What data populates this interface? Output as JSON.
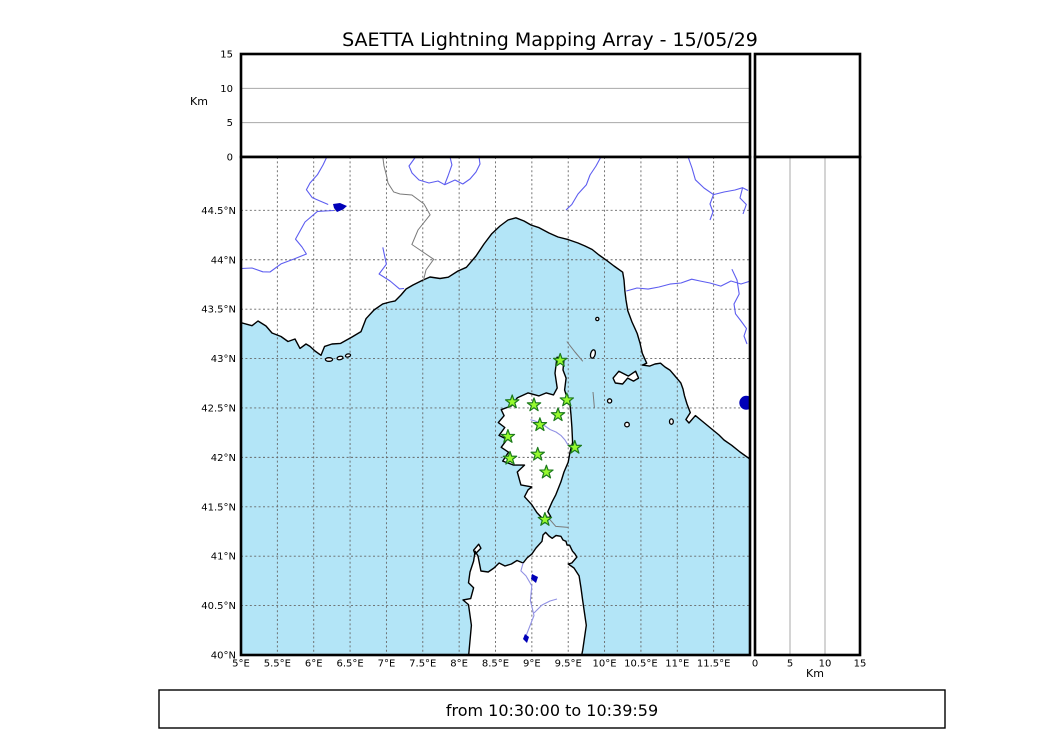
{
  "title": "SAETTA Lightning Mapping Array - 15/05/29",
  "footer": {
    "time_range": "from 10:30:00 to 10:39:59"
  },
  "chart_data": {
    "type": "scatter",
    "title": "SAETTA Lightning Mapping Array - 15/05/29",
    "subtitle_time_window": {
      "from": "10:30:00",
      "to": "10:39:59"
    },
    "map_extent": {
      "lon_min": 5,
      "lon_max": 12,
      "lat_min": 40,
      "lat_max": 45.04
    },
    "altitude_axis": {
      "label": "Km",
      "min": 0,
      "max": 15,
      "ticks": [
        0,
        5,
        10,
        15
      ],
      "gridlines": [
        5,
        10
      ]
    },
    "lon_ticks": [
      {
        "v": 5,
        "label": "5°E"
      },
      {
        "v": 5.5,
        "label": "5.5°E"
      },
      {
        "v": 6,
        "label": "6°E"
      },
      {
        "v": 6.5,
        "label": "6.5°E"
      },
      {
        "v": 7,
        "label": "7°E"
      },
      {
        "v": 7.5,
        "label": "7.5°E"
      },
      {
        "v": 8,
        "label": "8°E"
      },
      {
        "v": 8.5,
        "label": "8.5°E"
      },
      {
        "v": 9,
        "label": "9°E"
      },
      {
        "v": 9.5,
        "label": "9.5°E"
      },
      {
        "v": 10,
        "label": "10°E"
      },
      {
        "v": 10.5,
        "label": "10.5°E"
      },
      {
        "v": 11,
        "label": "11°E"
      },
      {
        "v": 11.5,
        "label": "11.5°E"
      }
    ],
    "lat_ticks": [
      {
        "v": 44.5,
        "label": "44.5°N"
      },
      {
        "v": 44,
        "label": "44°N"
      },
      {
        "v": 43.5,
        "label": "43.5°N"
      },
      {
        "v": 43,
        "label": "43°N"
      },
      {
        "v": 42.5,
        "label": "42.5°N"
      },
      {
        "v": 42,
        "label": "42°N"
      },
      {
        "v": 41.5,
        "label": "41.5°N"
      },
      {
        "v": 41,
        "label": "41°N"
      },
      {
        "v": 40.5,
        "label": "40.5°N"
      },
      {
        "v": 40,
        "label": "40°N"
      }
    ],
    "lon_gridlines": [
      5.5,
      6,
      6.5,
      7,
      7.5,
      8,
      8.5,
      9,
      9.5,
      10,
      10.5,
      11,
      11.5
    ],
    "lat_gridlines": [
      40.5,
      41,
      41.5,
      42,
      42.5,
      43,
      43.5,
      44,
      44.5
    ],
    "stations": [
      {
        "lon": 9.39,
        "lat": 42.98
      },
      {
        "lon": 9.48,
        "lat": 42.58
      },
      {
        "lon": 8.73,
        "lat": 42.56
      },
      {
        "lon": 9.03,
        "lat": 42.53
      },
      {
        "lon": 9.36,
        "lat": 42.43
      },
      {
        "lon": 9.11,
        "lat": 42.33
      },
      {
        "lon": 8.67,
        "lat": 42.21
      },
      {
        "lon": 9.59,
        "lat": 42.1
      },
      {
        "lon": 8.7,
        "lat": 41.99
      },
      {
        "lon": 9.08,
        "lat": 42.03
      },
      {
        "lon": 9.2,
        "lat": 41.85
      },
      {
        "lon": 9.18,
        "lat": 41.37
      }
    ],
    "lightning_sources": [],
    "colors": {
      "sea": "#b3e5f7",
      "land": "#ffffff",
      "station_fill": "#97fa2e",
      "station_edge": "#1c7a1c",
      "river": "#5d5df0",
      "lake": "#0000b8"
    },
    "legend_position": "none",
    "grid": true
  }
}
